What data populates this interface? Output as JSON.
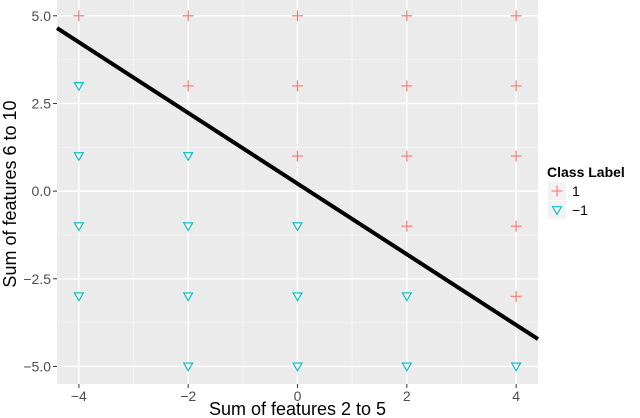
{
  "chart_data": {
    "type": "scatter",
    "xlabel": "Sum of features 2 to 5",
    "ylabel": "Sum of features 6 to 10",
    "xlim": [
      -4.4,
      4.4
    ],
    "ylim": [
      -5.5,
      5.45
    ],
    "x_ticks": [
      -4,
      -2,
      0,
      2,
      4
    ],
    "y_ticks": [
      5.0,
      2.5,
      0.0,
      -2.5,
      -5.0
    ],
    "x_tick_labels": [
      "−4",
      "−2",
      "0",
      "2",
      "4"
    ],
    "y_tick_labels": [
      "5.0",
      "2.5",
      "0.0",
      "−2.5",
      "−5.0"
    ],
    "grid": true,
    "legend": {
      "title": "Class Label",
      "position": "right",
      "entries": [
        {
          "label": "1",
          "marker": "plus",
          "color": "#f8766d"
        },
        {
          "label": "−1",
          "marker": "triangle-down",
          "color": "#00bfc4"
        }
      ]
    },
    "series": [
      {
        "name": "1",
        "marker": "plus",
        "color": "#f8766d",
        "points": [
          [
            -4,
            5
          ],
          [
            -2,
            5
          ],
          [
            0,
            5
          ],
          [
            2,
            5
          ],
          [
            4,
            5
          ],
          [
            -2,
            3
          ],
          [
            0,
            3
          ],
          [
            2,
            3
          ],
          [
            4,
            3
          ],
          [
            0,
            1
          ],
          [
            2,
            1
          ],
          [
            4,
            1
          ],
          [
            2,
            -1
          ],
          [
            4,
            -1
          ],
          [
            4,
            -3
          ]
        ]
      },
      {
        "name": "−1",
        "marker": "triangle-down",
        "color": "#00bfc4",
        "points": [
          [
            -4,
            3
          ],
          [
            -4,
            1
          ],
          [
            -2,
            1
          ],
          [
            -4,
            -1
          ],
          [
            -2,
            -1
          ],
          [
            0,
            -1
          ],
          [
            -4,
            -3
          ],
          [
            -2,
            -3
          ],
          [
            0,
            -3
          ],
          [
            2,
            -3
          ],
          [
            -2,
            -5
          ],
          [
            0,
            -5
          ],
          [
            2,
            -5
          ],
          [
            4,
            -5
          ]
        ]
      }
    ],
    "decision_line": {
      "color": "#000000",
      "points": [
        [
          -4.4,
          4.65
        ],
        [
          4.4,
          -4.22
        ]
      ]
    }
  }
}
